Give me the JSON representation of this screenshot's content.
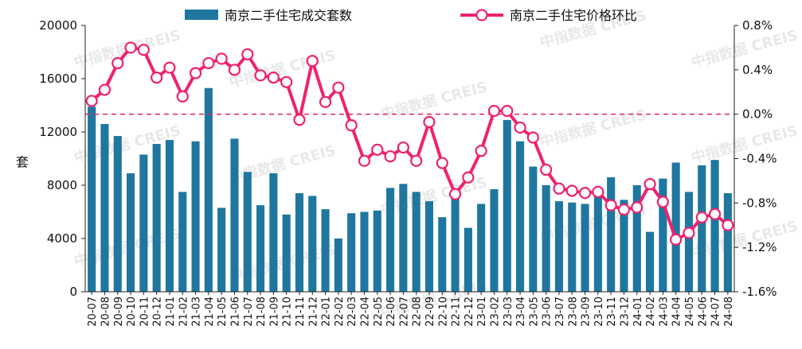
{
  "chart_data": {
    "type": "bar",
    "title": "",
    "ylabel": "套",
    "ylim": [
      0,
      20000
    ],
    "y2lim": [
      -1.6,
      0.8
    ],
    "yticks": [
      0,
      4000,
      8000,
      12000,
      16000,
      20000
    ],
    "y2ticks": [
      "-1.6%",
      "-1.2%",
      "-0.8%",
      "-0.4%",
      "0.0%",
      "0.4%",
      "0.8%"
    ],
    "categories": [
      "20-07",
      "20-08",
      "20-09",
      "20-10",
      "20-11",
      "20-12",
      "21-01",
      "21-02",
      "21-03",
      "21-04",
      "21-05",
      "21-06",
      "21-07",
      "21-08",
      "21-09",
      "21-10",
      "21-11",
      "21-12",
      "22-01",
      "22-02",
      "22-03",
      "22-04",
      "22-05",
      "22-06",
      "22-07",
      "22-08",
      "22-09",
      "22-10",
      "22-11",
      "22-12",
      "23-01",
      "23-02",
      "23-03",
      "23-04",
      "23-05",
      "23-06",
      "23-07",
      "23-08",
      "23-09",
      "23-10",
      "23-11",
      "23-12",
      "24-01",
      "24-02",
      "24-03",
      "24-04",
      "24-05",
      "24-06",
      "24-07",
      "24-08"
    ],
    "series": [
      {
        "name": "南京二手住宅成交套数",
        "type": "bar",
        "axis": "left",
        "color": "#1f77a0",
        "values": [
          13900,
          12600,
          11700,
          8900,
          10300,
          11100,
          11400,
          7500,
          11300,
          15300,
          6300,
          11500,
          9000,
          6500,
          8900,
          5800,
          7400,
          7200,
          6200,
          4000,
          5900,
          6000,
          6100,
          7800,
          8100,
          7500,
          6800,
          5600,
          7000,
          4800,
          6600,
          7700,
          12900,
          11300,
          9400,
          8000,
          6800,
          6700,
          6600,
          7200,
          8600,
          6900,
          8000,
          4500,
          8500,
          9700,
          7500,
          9500,
          9900,
          7400
        ]
      },
      {
        "name": "南京二手住宅价格环比",
        "type": "line",
        "axis": "right",
        "color": "#f0216e",
        "values": [
          0.12,
          0.22,
          0.46,
          0.6,
          0.58,
          0.33,
          0.42,
          0.16,
          0.37,
          0.46,
          0.5,
          0.4,
          0.54,
          0.35,
          0.33,
          0.29,
          -0.05,
          0.48,
          0.11,
          0.24,
          -0.1,
          -0.42,
          -0.32,
          -0.38,
          -0.3,
          -0.42,
          -0.07,
          -0.44,
          -0.72,
          -0.57,
          -0.33,
          0.03,
          0.03,
          -0.12,
          -0.21,
          -0.5,
          -0.67,
          -0.69,
          -0.71,
          -0.7,
          -0.82,
          -0.86,
          -0.84,
          -0.63,
          -0.79,
          -1.13,
          -1.07,
          -0.93,
          -0.9,
          -1.0
        ]
      }
    ],
    "reference_line": {
      "value": 0.0,
      "axis": "right",
      "style": "dashed",
      "color": "#e0245e"
    },
    "grid": false,
    "legend": "top-center",
    "watermark": [
      "中指数据",
      "CREIS"
    ]
  }
}
